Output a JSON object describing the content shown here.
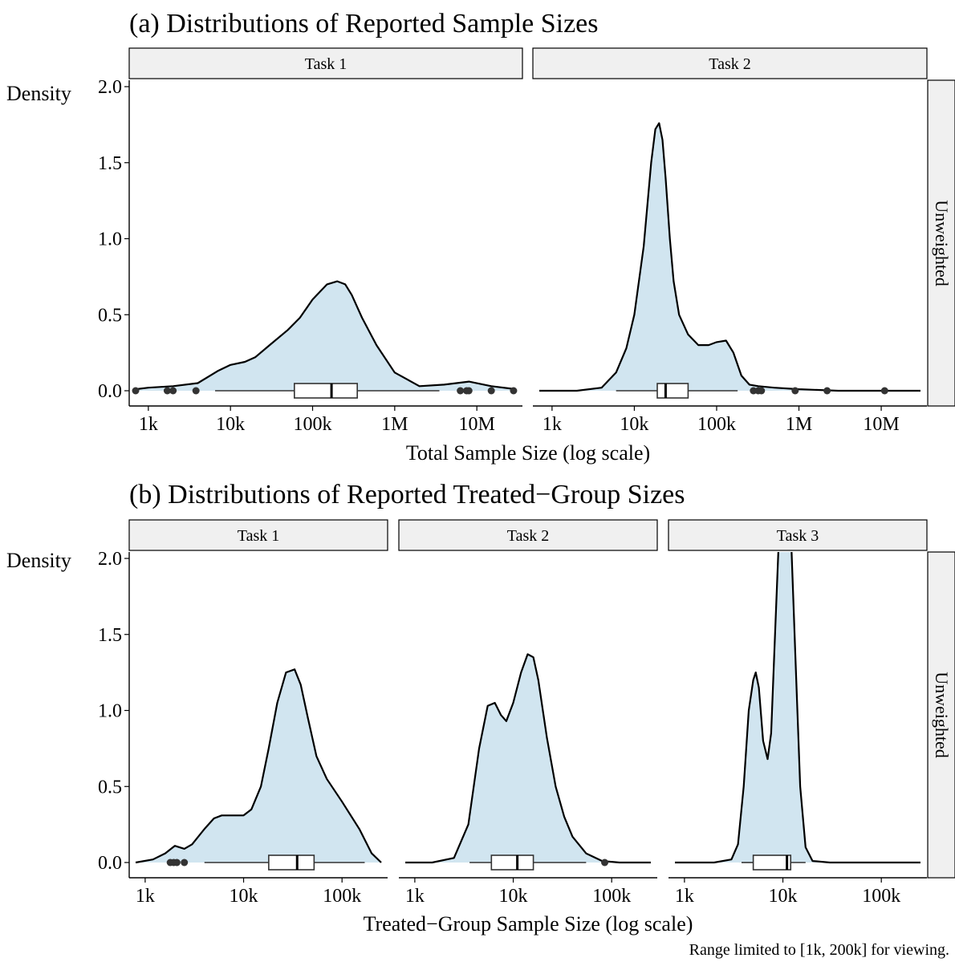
{
  "colors": {
    "fill": "#d1e5f0",
    "strip_bg": "#f0f0f0",
    "line": "#000000",
    "point": "#333333"
  },
  "chart_data": [
    {
      "type": "area",
      "title": "(a) Distributions of Reported Sample Sizes",
      "xlabel": "Total Sample Size (log scale)",
      "ylabel": "Density",
      "row_label": "Unweighted",
      "x_scale": "log10",
      "x_ticks": [
        1000,
        10000,
        100000,
        1000000,
        10000000
      ],
      "x_tick_labels": [
        "1k",
        "10k",
        "100k",
        "1M",
        "10M"
      ],
      "ylim": [
        0,
        2.0
      ],
      "y_ticks": [
        0,
        0.5,
        1.0,
        1.5,
        2.0
      ],
      "y_tick_labels": [
        "0.0",
        "0.5",
        "1.0",
        "1.5",
        "2.0"
      ],
      "grid": false,
      "panels": [
        {
          "label": "Task 1",
          "xlim": [
            700,
            30000000
          ],
          "density": {
            "x": [
              700,
              1000,
              2000,
              4000,
              7000,
              10000,
              15000,
              20000,
              30000,
              50000,
              70000,
              100000,
              150000,
              200000,
              250000,
              300000,
              400000,
              600000,
              1000000,
              2000000,
              4000000,
              8000000,
              15000000,
              30000000
            ],
            "y": [
              0.01,
              0.02,
              0.03,
              0.05,
              0.13,
              0.17,
              0.19,
              0.22,
              0.3,
              0.4,
              0.48,
              0.6,
              0.7,
              0.72,
              0.7,
              0.63,
              0.48,
              0.3,
              0.12,
              0.03,
              0.04,
              0.06,
              0.03,
              0.01
            ]
          },
          "boxplot": {
            "whisker_low": 6500,
            "q1": 60000,
            "median": 170000,
            "q3": 350000,
            "whisker_high": 3500000
          },
          "outliers": [
            700,
            1700,
            2000,
            3800,
            6300000,
            7500000,
            8000000,
            15000000,
            28000000
          ]
        },
        {
          "label": "Task 2",
          "xlim": [
            700,
            30000000
          ],
          "density": {
            "x": [
              700,
              2000,
              4000,
              6000,
              8000,
              10000,
              13000,
              16000,
              18000,
              20000,
              22000,
              24000,
              27000,
              30000,
              35000,
              45000,
              60000,
              80000,
              100000,
              130000,
              160000,
              200000,
              250000,
              320000,
              500000,
              1000000,
              3000000,
              10000000,
              30000000
            ],
            "y": [
              0.0,
              0.0,
              0.02,
              0.12,
              0.28,
              0.5,
              0.95,
              1.5,
              1.72,
              1.76,
              1.65,
              1.4,
              1.0,
              0.72,
              0.5,
              0.37,
              0.3,
              0.3,
              0.32,
              0.33,
              0.25,
              0.1,
              0.04,
              0.03,
              0.02,
              0.01,
              0.0,
              0.0,
              0.0
            ]
          },
          "boxplot": {
            "whisker_low": 6000,
            "q1": 19000,
            "median": 24000,
            "q3": 45000,
            "whisker_high": 180000
          },
          "outliers": [
            280000,
            320000,
            350000,
            900000,
            2200000,
            11000000
          ]
        }
      ]
    },
    {
      "type": "area",
      "title": "(b) Distributions of Reported Treated−Group Sizes",
      "xlabel": "Treated−Group Sample Size (log scale)",
      "ylabel": "Density",
      "row_label": "Unweighted",
      "x_scale": "log10",
      "x_ticks": [
        1000,
        10000,
        100000
      ],
      "x_tick_labels": [
        "1k",
        "10k",
        "100k"
      ],
      "ylim": [
        0,
        2.0
      ],
      "y_ticks": [
        0,
        0.5,
        1.0,
        1.5,
        2.0
      ],
      "y_tick_labels": [
        "0.0",
        "0.5",
        "1.0",
        "1.5",
        "2.0"
      ],
      "grid": false,
      "panels": [
        {
          "label": "Task 1",
          "xlim": [
            800,
            250000
          ],
          "density": {
            "x": [
              800,
              1200,
              1600,
              2000,
              2500,
              3000,
              4000,
              5000,
              6000,
              8000,
              10000,
              12000,
              15000,
              18000,
              22000,
              27000,
              33000,
              38000,
              45000,
              55000,
              70000,
              100000,
              150000,
              200000,
              250000
            ],
            "y": [
              0.0,
              0.02,
              0.06,
              0.11,
              0.09,
              0.12,
              0.22,
              0.29,
              0.31,
              0.31,
              0.31,
              0.35,
              0.5,
              0.75,
              1.05,
              1.25,
              1.27,
              1.17,
              0.95,
              0.7,
              0.55,
              0.4,
              0.22,
              0.06,
              0.0
            ]
          },
          "boxplot": {
            "whisker_low": 4000,
            "q1": 18000,
            "median": 35000,
            "q3": 52000,
            "whisker_high": 170000
          },
          "outliers": [
            1800,
            1950,
            2100,
            2500
          ]
        },
        {
          "label": "Task 2",
          "xlim": [
            800,
            250000
          ],
          "density": {
            "x": [
              800,
              1500,
              2500,
              3500,
              4500,
              5500,
              6500,
              7500,
              8500,
              10000,
              12000,
              14000,
              16000,
              18000,
              22000,
              27000,
              33000,
              40000,
              55000,
              80000,
              120000,
              250000
            ],
            "y": [
              0.0,
              0.0,
              0.03,
              0.25,
              0.75,
              1.03,
              1.05,
              0.97,
              0.93,
              1.05,
              1.25,
              1.37,
              1.35,
              1.2,
              0.82,
              0.5,
              0.3,
              0.17,
              0.06,
              0.01,
              0.0,
              0.0
            ]
          },
          "boxplot": {
            "whisker_low": 3600,
            "q1": 6000,
            "median": 11000,
            "q3": 16000,
            "whisker_high": 55000
          },
          "outliers": [
            85000
          ]
        },
        {
          "label": "Task 3",
          "xlim": [
            800,
            250000
          ],
          "density": {
            "x": [
              800,
              2000,
              3000,
              3500,
              4000,
              4500,
              5000,
              5300,
              5700,
              6300,
              7000,
              7600,
              8200,
              9000,
              10000,
              11000,
              12000,
              13500,
              15000,
              17000,
              20000,
              30000,
              100000,
              250000
            ],
            "y": [
              0.0,
              0.0,
              0.02,
              0.12,
              0.5,
              1.0,
              1.2,
              1.25,
              1.15,
              0.8,
              0.68,
              0.85,
              1.4,
              2.05,
              2.4,
              2.4,
              2.2,
              1.3,
              0.5,
              0.1,
              0.01,
              0.0,
              0.0,
              0.0
            ]
          },
          "boxplot": {
            "whisker_low": 3800,
            "q1": 5000,
            "median": 11000,
            "q3": 12000,
            "whisker_high": 17000
          },
          "outliers": []
        }
      ]
    }
  ],
  "caption": "Range limited to [1k, 200k] for viewing."
}
